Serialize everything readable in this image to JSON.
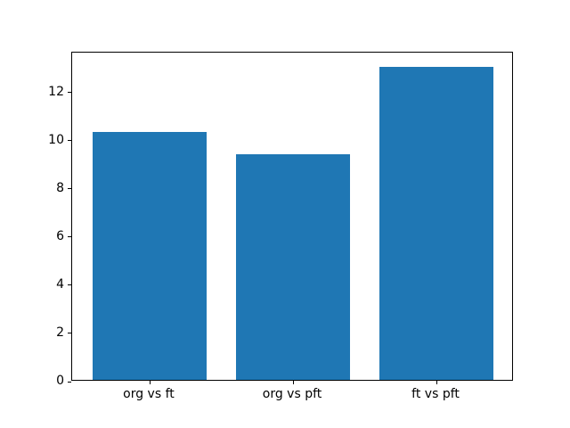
{
  "chart_data": {
    "type": "bar",
    "categories": [
      "org vs ft",
      "org vs pft",
      "ft vs pft"
    ],
    "values": [
      10.3,
      9.35,
      13.0
    ],
    "title": "",
    "xlabel": "",
    "ylabel": "",
    "ylim": [
      0,
      13.65
    ],
    "yticks": [
      0,
      2,
      4,
      6,
      8,
      10,
      12
    ],
    "bar_width_fraction": 0.8,
    "bar_color": "#1f77b4",
    "axis_color": "#000000",
    "background_color": "#ffffff",
    "grid": false,
    "legend": null
  }
}
